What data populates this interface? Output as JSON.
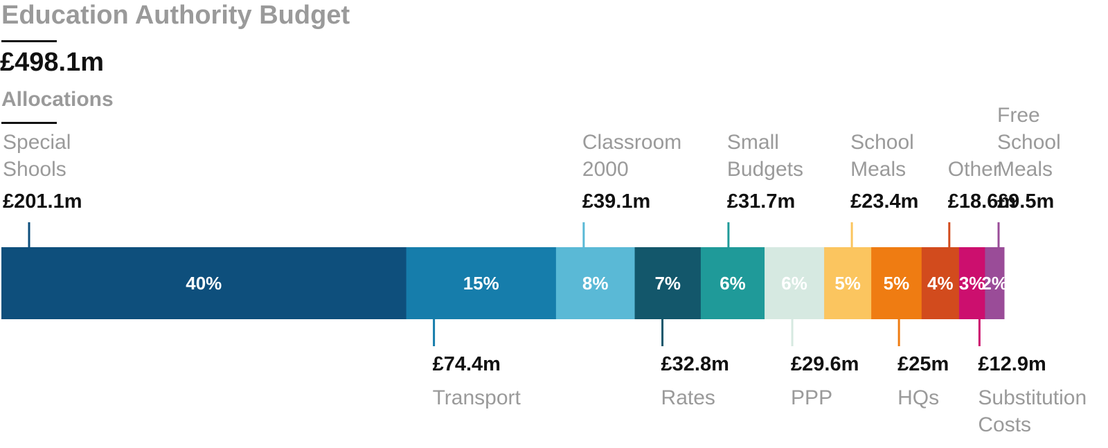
{
  "title": "Education Authority Budget",
  "total_label": "£498.1m",
  "subtitle": "Allocations",
  "chart_data": {
    "type": "stacked-bar",
    "title": "Education Authority Budget",
    "total": 498.1,
    "unit": "£m",
    "segments": [
      {
        "name": "Special Shools",
        "name_lines": [
          "Special",
          "Shools"
        ],
        "value": 201.1,
        "value_label": "£201.1m",
        "percent_label": "40%",
        "color": "#0e4f7c",
        "label_side": "top"
      },
      {
        "name": "Transport",
        "name_lines": [
          "Transport"
        ],
        "value": 74.4,
        "value_label": "£74.4m",
        "percent_label": "15%",
        "color": "#167dab",
        "label_side": "bottom"
      },
      {
        "name": "Classroom 2000",
        "name_lines": [
          "Classroom",
          "2000"
        ],
        "value": 39.1,
        "value_label": "£39.1m",
        "percent_label": "8%",
        "color": "#5ab9d6",
        "label_side": "top"
      },
      {
        "name": "Rates",
        "name_lines": [
          "Rates"
        ],
        "value": 32.8,
        "value_label": "£32.8m",
        "percent_label": "7%",
        "color": "#13576b",
        "label_side": "bottom"
      },
      {
        "name": "Small Budgets",
        "name_lines": [
          "Small",
          "Budgets"
        ],
        "value": 31.7,
        "value_label": "£31.7m",
        "percent_label": "6%",
        "color": "#1f9a99",
        "label_side": "top"
      },
      {
        "name": "PPP",
        "name_lines": [
          "PPP"
        ],
        "value": 29.6,
        "value_label": "£29.6m",
        "percent_label": "6%",
        "color": "#d6e9e1",
        "label_side": "bottom"
      },
      {
        "name": "School Meals",
        "name_lines": [
          "School",
          "Meals"
        ],
        "value": 23.4,
        "value_label": "£23.4m",
        "percent_label": "5%",
        "color": "#fbc55f",
        "label_side": "top"
      },
      {
        "name": "HQs",
        "name_lines": [
          "HQs"
        ],
        "value": 25,
        "value_label": "£25m",
        "percent_label": "5%",
        "color": "#ef7c12",
        "label_side": "bottom"
      },
      {
        "name": "Other",
        "name_lines": [
          "Other"
        ],
        "value": 18.6,
        "value_label": "£18.6m",
        "percent_label": "4%",
        "color": "#d24b1d",
        "label_side": "top"
      },
      {
        "name": "Substitution Costs",
        "name_lines": [
          "Substitution",
          "Costs"
        ],
        "value": 12.9,
        "value_label": "£12.9m",
        "percent_label": "3%",
        "color": "#cc0f6e",
        "label_side": "bottom"
      },
      {
        "name": "Free School Meals",
        "name_lines": [
          "Free",
          "School",
          "Meals"
        ],
        "value": 9.5,
        "value_label": "£9.5m",
        "percent_label": "2%",
        "color": "#9a4c98",
        "label_side": "top"
      }
    ]
  }
}
